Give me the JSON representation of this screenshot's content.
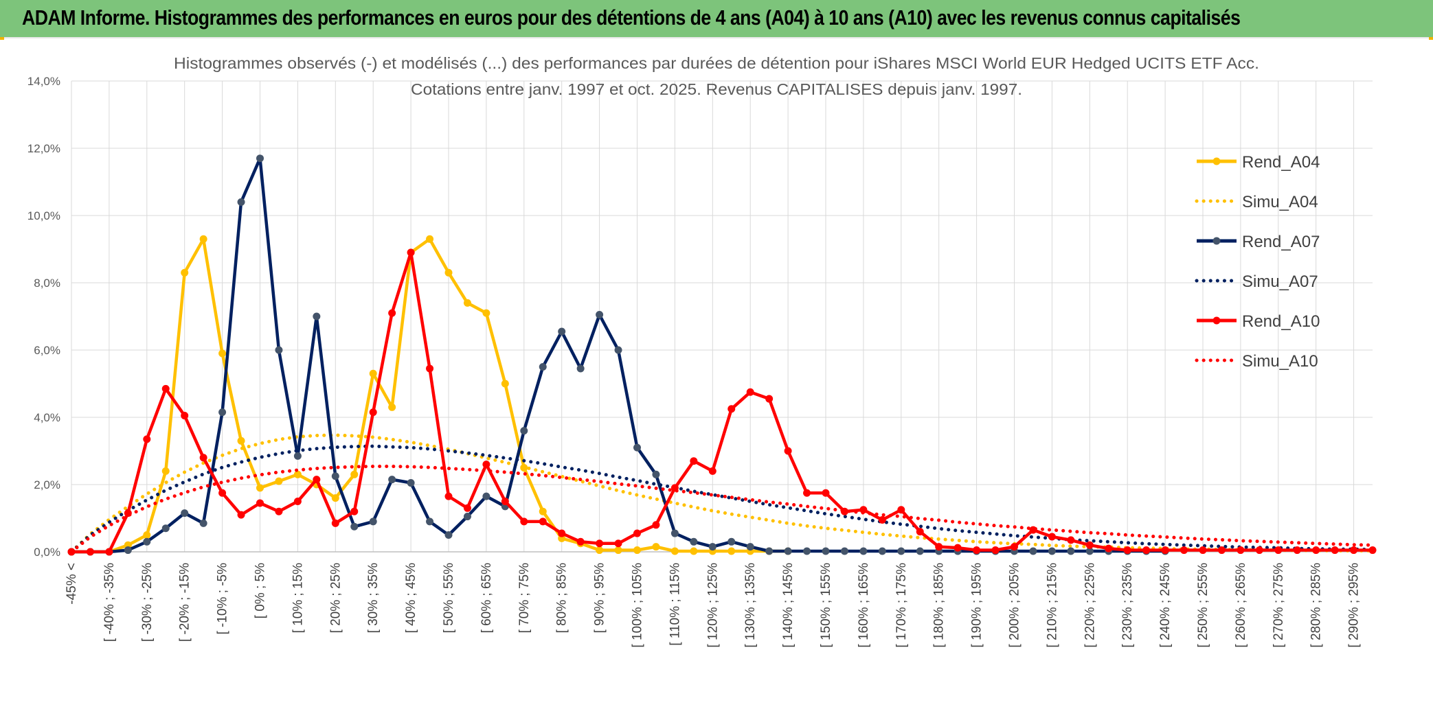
{
  "header": {
    "title": "ADAM Informe. Histogrammes des performances en euros pour des détentions de 4 ans (A04) à 10 ans (A10) avec les revenus connus capitalisés"
  },
  "colors": {
    "banner": "#7dc47b",
    "a04": "#ffc000",
    "a07": "#002060",
    "a07_marker": "#44546a",
    "a10": "#ff0000",
    "grid": "#d9d9d9"
  },
  "chart_data": {
    "type": "line",
    "title_line1": "Histogrammes observés (-) et modélisés (...) des performances par durées de détention pour iShares MSCI World EUR Hedged UCITS ETF Acc.",
    "title_line2": "Cotations entre janv. 1997 et oct. 2025. Revenus CAPITALISES depuis janv. 1997.",
    "ylim": [
      0,
      14
    ],
    "yticks": [
      "0,0%",
      "2,0%",
      "4,0%",
      "6,0%",
      "8,0%",
      "10,0%",
      "12,0%",
      "14,0%"
    ],
    "xlabels": [
      "-45% <",
      "[ -40% ; -35%",
      "[ -30% ; -25%",
      "[ -20% ; -15%",
      "[ -10% ; -5%",
      "[ 0% ; 5%",
      "[ 10% ; 15%",
      "[ 20% ; 25%",
      "[ 30% ; 35%",
      "[ 40% ; 45%",
      "[ 50% ; 55%",
      "[ 60% ; 65%",
      "[ 70% ; 75%",
      "[ 80% ; 85%",
      "[ 90% ; 95%",
      "[ 100% ; 105%",
      "[ 110% ; 115%",
      "[ 120% ; 125%",
      "[ 130% ; 135%",
      "[ 140% ; 145%",
      "[ 150% ; 155%",
      "[ 160% ; 165%",
      "[ 170% ; 175%",
      "[ 180% ; 185%",
      "[ 190% ; 195%",
      "[ 200% ; 205%",
      "[ 210% ; 215%",
      "[ 220% ; 225%",
      "[ 230% ; 235%",
      "[ 240% ; 245%",
      "[ 250% ; 255%",
      "[ 260% ; 265%",
      "[ 270% ; 275%",
      "[ 280% ; 285%",
      "[ 290% ; 295%"
    ],
    "n_points": 70,
    "series": [
      {
        "name": "Rend_A04",
        "style": "solid",
        "color": "#ffc000",
        "marker": "#ffc000",
        "values": [
          0,
          0,
          0,
          0.2,
          0.5,
          2.4,
          8.3,
          9.3,
          5.9,
          3.3,
          1.9,
          2.1,
          2.3,
          2.0,
          1.6,
          2.3,
          5.3,
          4.3,
          8.9,
          9.3,
          8.3,
          7.4,
          7.1,
          5.0,
          2.5,
          1.2,
          0.4,
          0.25,
          0.05,
          0.05,
          0.05,
          0.15,
          0.02,
          0.02,
          0.02,
          0.02,
          0.02,
          0.02,
          0.02
        ]
      },
      {
        "name": "Simu_A04",
        "style": "dotted",
        "color": "#ffc000",
        "values": [
          0,
          0.53,
          0.96,
          1.35,
          1.72,
          2.06,
          2.37,
          2.64,
          2.87,
          3.07,
          3.22,
          3.34,
          3.42,
          3.46,
          3.47,
          3.45,
          3.41,
          3.34,
          3.26,
          3.16,
          3.05,
          2.92,
          2.79,
          2.66,
          2.52,
          2.38,
          2.24,
          2.1,
          1.96,
          1.82,
          1.69,
          1.57,
          1.45,
          1.33,
          1.22,
          1.12,
          1.03,
          0.94,
          0.85,
          0.77,
          0.7,
          0.64,
          0.58,
          0.52,
          0.47,
          0.42,
          0.38,
          0.34,
          0.3,
          0.27,
          0.24,
          0.22,
          0.19,
          0.17,
          0.15,
          0.14,
          0.12,
          0.11,
          0.1,
          0.08,
          0.08,
          0.07,
          0.06,
          0.05,
          0.05,
          0.04,
          0.04,
          0.03,
          0.03,
          0.03
        ]
      },
      {
        "name": "Rend_A07",
        "style": "solid",
        "color": "#002060",
        "marker": "#44546a",
        "values": [
          0,
          0,
          0,
          0.05,
          0.3,
          0.7,
          1.15,
          0.85,
          4.15,
          10.4,
          11.7,
          6.0,
          2.85,
          7.0,
          2.25,
          0.75,
          0.9,
          2.15,
          2.05,
          0.9,
          0.5,
          1.05,
          1.65,
          1.35,
          3.6,
          5.5,
          6.55,
          5.45,
          7.05,
          6.0,
          3.1,
          2.3,
          0.55,
          0.3,
          0.15,
          0.3,
          0.15,
          0.02,
          0.02,
          0.02,
          0.02,
          0.02,
          0.02,
          0.02,
          0.02,
          0.02,
          0.02,
          0.02,
          0.02,
          0.02,
          0.02,
          0.02,
          0.02,
          0.02,
          0.02,
          0.02,
          0.02,
          0.02,
          0.02
        ]
      },
      {
        "name": "Simu_A07",
        "style": "dotted",
        "color": "#002060",
        "values": [
          0,
          0.5,
          0.88,
          1.23,
          1.54,
          1.83,
          2.08,
          2.31,
          2.51,
          2.67,
          2.81,
          2.92,
          3.01,
          3.07,
          3.11,
          3.13,
          3.14,
          3.12,
          3.1,
          3.06,
          3.0,
          2.94,
          2.87,
          2.79,
          2.71,
          2.62,
          2.52,
          2.43,
          2.33,
          2.22,
          2.12,
          2.01,
          1.91,
          1.8,
          1.7,
          1.6,
          1.5,
          1.4,
          1.31,
          1.22,
          1.13,
          1.05,
          0.97,
          0.89,
          0.82,
          0.76,
          0.69,
          0.63,
          0.58,
          0.53,
          0.48,
          0.44,
          0.4,
          0.36,
          0.33,
          0.3,
          0.27,
          0.24,
          0.22,
          0.2,
          0.18,
          0.16,
          0.14,
          0.13,
          0.12,
          0.1,
          0.09,
          0.08,
          0.08,
          0.07
        ]
      },
      {
        "name": "Rend_A10",
        "style": "solid",
        "color": "#ff0000",
        "marker": "#ff0000",
        "values": [
          0,
          0,
          0,
          1.15,
          3.35,
          4.85,
          4.05,
          2.8,
          1.75,
          1.1,
          1.45,
          1.2,
          1.5,
          2.15,
          0.85,
          1.2,
          4.15,
          7.1,
          8.9,
          5.45,
          1.65,
          1.3,
          2.6,
          1.5,
          0.9,
          0.9,
          0.55,
          0.3,
          0.25,
          0.25,
          0.55,
          0.8,
          1.9,
          2.7,
          2.4,
          4.25,
          4.75,
          4.55,
          3.0,
          1.75,
          1.75,
          1.2,
          1.25,
          0.95,
          1.25,
          0.6,
          0.15,
          0.12,
          0.05,
          0.05,
          0.15,
          0.65,
          0.45,
          0.35,
          0.2,
          0.1,
          0.05,
          0.05,
          0.05,
          0.05,
          0.05,
          0.05,
          0.05,
          0.05,
          0.05,
          0.05,
          0.05,
          0.05,
          0.05,
          0.05
        ]
      },
      {
        "name": "Simu_A10",
        "style": "dotted",
        "color": "#ff0000",
        "values": [
          0,
          0.44,
          0.78,
          1.08,
          1.34,
          1.57,
          1.76,
          1.93,
          2.07,
          2.19,
          2.29,
          2.37,
          2.43,
          2.48,
          2.51,
          2.53,
          2.54,
          2.54,
          2.53,
          2.51,
          2.48,
          2.45,
          2.41,
          2.37,
          2.32,
          2.27,
          2.21,
          2.15,
          2.09,
          2.02,
          1.96,
          1.89,
          1.82,
          1.76,
          1.69,
          1.62,
          1.55,
          1.48,
          1.42,
          1.35,
          1.29,
          1.22,
          1.16,
          1.1,
          1.05,
          0.99,
          0.94,
          0.88,
          0.83,
          0.78,
          0.74,
          0.69,
          0.65,
          0.61,
          0.57,
          0.54,
          0.5,
          0.47,
          0.44,
          0.41,
          0.38,
          0.36,
          0.33,
          0.31,
          0.29,
          0.27,
          0.25,
          0.23,
          0.21,
          0.2
        ]
      }
    ],
    "legend": {
      "position": "right",
      "entries": [
        "Rend_A04",
        "Simu_A04",
        "Rend_A07",
        "Simu_A07",
        "Rend_A10",
        "Simu_A10"
      ]
    }
  }
}
